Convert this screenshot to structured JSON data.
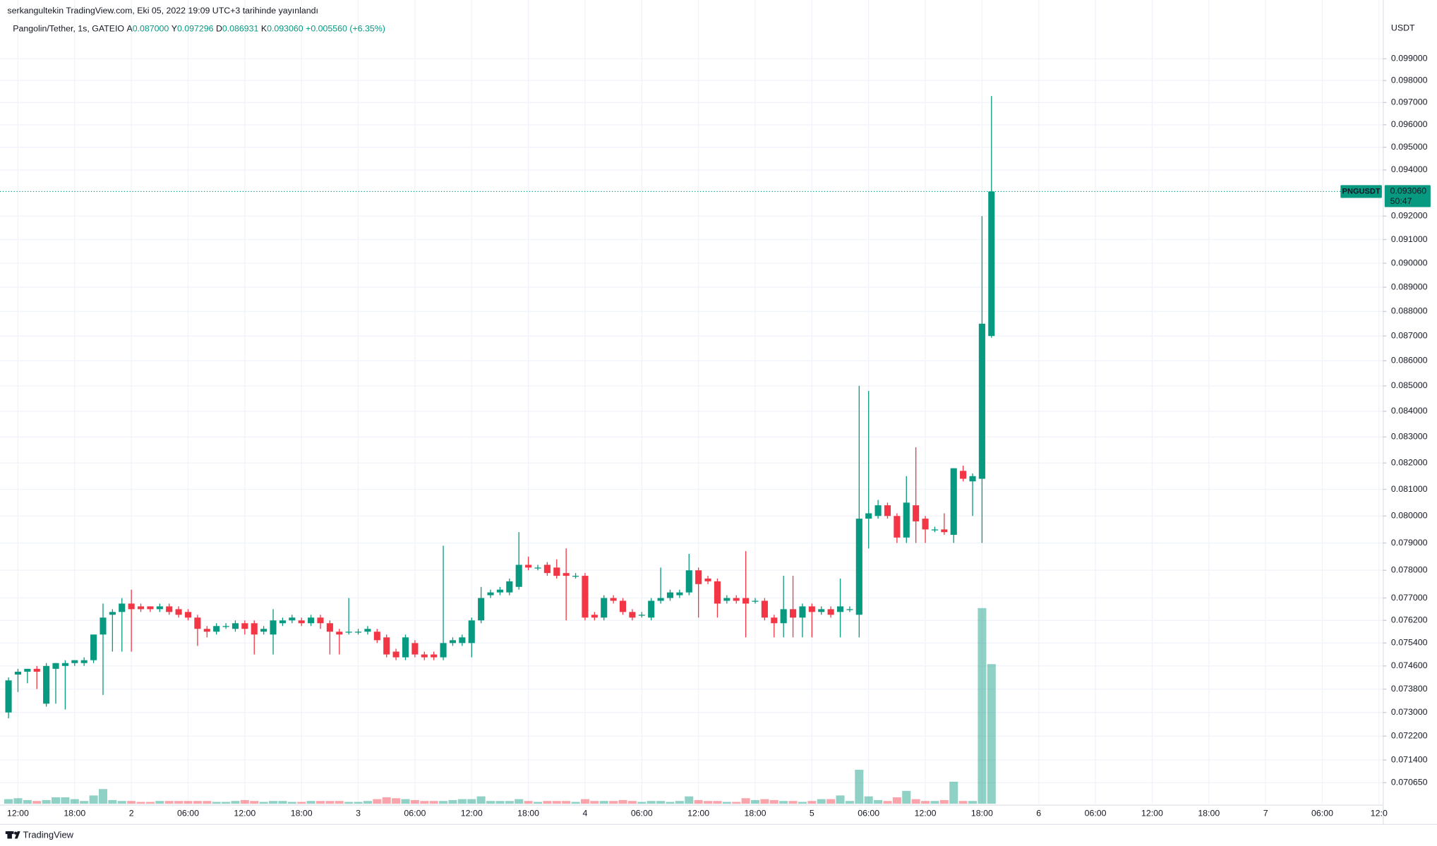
{
  "header": {
    "published": "serkangultekin TradingView.com, Eki 05, 2022 19:09 UTC+3 tarihinde yayınlandı"
  },
  "chart_data": {
    "type": "candlestick",
    "title": "Pangolin/Tether, 1s, GATEIO",
    "ohlc_labels": [
      {
        "key": "A",
        "value": "0.087000"
      },
      {
        "key": "Y",
        "value": "0.097296"
      },
      {
        "key": "D",
        "value": "0.086931"
      },
      {
        "key": "K",
        "value": "0.093060"
      }
    ],
    "change": "+0.005560 (+6.35%)",
    "y_unit": "USDT",
    "log_scale": true,
    "grid": true,
    "xlim": [
      -0.9,
      145.4
    ],
    "xticks": [
      {
        "value": 1,
        "label": "12:00"
      },
      {
        "value": 7,
        "label": "18:00"
      },
      {
        "value": 13,
        "label": "2"
      },
      {
        "value": 19,
        "label": "06:00"
      },
      {
        "value": 25,
        "label": "12:00"
      },
      {
        "value": 31,
        "label": "18:00"
      },
      {
        "value": 37,
        "label": "3"
      },
      {
        "value": 43,
        "label": "06:00"
      },
      {
        "value": 49,
        "label": "12:00"
      },
      {
        "value": 55,
        "label": "18:00"
      },
      {
        "value": 61,
        "label": "4"
      },
      {
        "value": 67,
        "label": "06:00"
      },
      {
        "value": 73,
        "label": "12:00"
      },
      {
        "value": 79,
        "label": "18:00"
      },
      {
        "value": 85,
        "label": "5"
      },
      {
        "value": 91,
        "label": "06:00"
      },
      {
        "value": 97,
        "label": "12:00"
      },
      {
        "value": 103,
        "label": "18:00"
      },
      {
        "value": 109,
        "label": "6"
      },
      {
        "value": 115,
        "label": "06:00"
      },
      {
        "value": 121,
        "label": "12:00"
      },
      {
        "value": 127,
        "label": "18:00"
      },
      {
        "value": 133,
        "label": "7"
      },
      {
        "value": 139,
        "label": "06:00"
      },
      {
        "value": 145,
        "label": "12:0"
      }
    ],
    "ylim": [
      0.06996,
      0.10002
    ],
    "yticks": [
      {
        "value": 0.07065,
        "label": "0.070650"
      },
      {
        "value": 0.0714,
        "label": "0.071400"
      },
      {
        "value": 0.0722,
        "label": "0.072200"
      },
      {
        "value": 0.073,
        "label": "0.073000"
      },
      {
        "value": 0.0738,
        "label": "0.073800"
      },
      {
        "value": 0.0746,
        "label": "0.074600"
      },
      {
        "value": 0.0754,
        "label": "0.075400"
      },
      {
        "value": 0.0762,
        "label": "0.076200"
      },
      {
        "value": 0.077,
        "label": "0.077000"
      },
      {
        "value": 0.078,
        "label": "0.078000"
      },
      {
        "value": 0.079,
        "label": "0.079000"
      },
      {
        "value": 0.08,
        "label": "0.080000"
      },
      {
        "value": 0.081,
        "label": "0.081000"
      },
      {
        "value": 0.082,
        "label": "0.082000"
      },
      {
        "value": 0.083,
        "label": "0.083000"
      },
      {
        "value": 0.084,
        "label": "0.084000"
      },
      {
        "value": 0.085,
        "label": "0.085000"
      },
      {
        "value": 0.086,
        "label": "0.086000"
      },
      {
        "value": 0.087,
        "label": "0.087000"
      },
      {
        "value": 0.088,
        "label": "0.088000"
      },
      {
        "value": 0.089,
        "label": "0.089000"
      },
      {
        "value": 0.09,
        "label": "0.090000"
      },
      {
        "value": 0.091,
        "label": "0.091000"
      },
      {
        "value": 0.092,
        "label": "0.092000"
      },
      {
        "value": 0.094,
        "label": "0.094000"
      },
      {
        "value": 0.095,
        "label": "0.095000"
      },
      {
        "value": 0.096,
        "label": "0.096000"
      },
      {
        "value": 0.097,
        "label": "0.097000"
      },
      {
        "value": 0.098,
        "label": "0.098000"
      },
      {
        "value": 0.099,
        "label": "0.099000"
      }
    ],
    "series": [
      {
        "name": "PNGUSDT",
        "up_color": "#089981",
        "down_color": "#f23645",
        "open": [
          0.073,
          0.0743,
          0.0744,
          0.0745,
          0.0733,
          0.0745,
          0.0746,
          0.0747,
          0.0747,
          0.0748,
          0.0757,
          0.0764,
          0.0765,
          0.0768,
          0.0767,
          0.0767,
          0.0766,
          0.0767,
          0.0766,
          0.0765,
          0.0763,
          0.0759,
          0.0758,
          0.076,
          0.0759,
          0.0761,
          0.0761,
          0.0758,
          0.0757,
          0.0761,
          0.0762,
          0.0762,
          0.0761,
          0.0763,
          0.0761,
          0.0758,
          0.0758,
          0.0758,
          0.0758,
          0.0758,
          0.0756,
          0.0751,
          0.0749,
          0.0754,
          0.075,
          0.075,
          0.0749,
          0.0754,
          0.0754,
          0.0754,
          0.0762,
          0.0771,
          0.0772,
          0.0772,
          0.0774,
          0.0782,
          0.0781,
          0.0782,
          0.0781,
          0.0779,
          0.0778,
          0.0778,
          0.0764,
          0.0763,
          0.077,
          0.0769,
          0.0765,
          0.0764,
          0.0763,
          0.0769,
          0.077,
          0.0771,
          0.0772,
          0.078,
          0.0777,
          0.0776,
          0.0769,
          0.077,
          0.077,
          0.0769,
          0.0769,
          0.0763,
          0.0761,
          0.0766,
          0.0763,
          0.0767,
          0.0765,
          0.0766,
          0.0765,
          0.0766,
          0.0764,
          0.0799,
          0.08,
          0.0804,
          0.08,
          0.0792,
          0.0804,
          0.0799,
          0.0795,
          0.0795,
          0.0793,
          0.0817,
          0.0813,
          0.0814,
          0.087
        ],
        "high": [
          0.0742,
          0.0745,
          0.0745,
          0.0746,
          0.0747,
          0.0747,
          0.0748,
          0.0748,
          0.0749,
          0.0757,
          0.0768,
          0.0766,
          0.077,
          0.0773,
          0.0768,
          0.0767,
          0.0768,
          0.0768,
          0.0767,
          0.0766,
          0.0764,
          0.076,
          0.0761,
          0.0761,
          0.0762,
          0.0762,
          0.0762,
          0.076,
          0.0766,
          0.0763,
          0.0764,
          0.0763,
          0.0764,
          0.0764,
          0.0762,
          0.0759,
          0.077,
          0.0759,
          0.076,
          0.0759,
          0.0757,
          0.0752,
          0.0757,
          0.0755,
          0.0751,
          0.0751,
          0.0789,
          0.0756,
          0.0757,
          0.0763,
          0.0774,
          0.0773,
          0.0774,
          0.0777,
          0.0794,
          0.0785,
          0.0782,
          0.0783,
          0.0784,
          0.0788,
          0.0779,
          0.0779,
          0.0765,
          0.0771,
          0.0771,
          0.077,
          0.0766,
          0.0765,
          0.077,
          0.0781,
          0.0773,
          0.0773,
          0.0786,
          0.0781,
          0.0778,
          0.0777,
          0.0771,
          0.0771,
          0.0787,
          0.077,
          0.077,
          0.0764,
          0.0778,
          0.0778,
          0.0768,
          0.0768,
          0.0767,
          0.0767,
          0.0777,
          0.0767,
          0.085,
          0.0848,
          0.0806,
          0.0805,
          0.0801,
          0.0815,
          0.0826,
          0.08,
          0.0796,
          0.0801,
          0.0818,
          0.0819,
          0.0816,
          0.092,
          0.097296
        ],
        "low": [
          0.0728,
          0.0737,
          0.074,
          0.0738,
          0.0732,
          0.0733,
          0.0731,
          0.0746,
          0.0746,
          0.0747,
          0.0736,
          0.0751,
          0.0751,
          0.0751,
          0.0765,
          0.0765,
          0.0765,
          0.0764,
          0.0763,
          0.0762,
          0.0753,
          0.0756,
          0.0757,
          0.0759,
          0.0758,
          0.0757,
          0.075,
          0.0757,
          0.075,
          0.076,
          0.0761,
          0.076,
          0.076,
          0.0759,
          0.075,
          0.075,
          0.0757,
          0.0757,
          0.0757,
          0.0754,
          0.0749,
          0.0748,
          0.0748,
          0.0749,
          0.0748,
          0.0748,
          0.0748,
          0.0753,
          0.0753,
          0.0749,
          0.0761,
          0.077,
          0.0771,
          0.0771,
          0.0773,
          0.078,
          0.078,
          0.0778,
          0.0777,
          0.0762,
          0.0777,
          0.0762,
          0.0762,
          0.0762,
          0.0768,
          0.0764,
          0.0762,
          0.0763,
          0.0762,
          0.0768,
          0.0769,
          0.077,
          0.0771,
          0.0763,
          0.0775,
          0.0763,
          0.0768,
          0.0768,
          0.0756,
          0.0768,
          0.0762,
          0.0756,
          0.0756,
          0.0756,
          0.0756,
          0.0756,
          0.0764,
          0.0763,
          0.0756,
          0.0765,
          0.0756,
          0.0788,
          0.0799,
          0.0799,
          0.079,
          0.079,
          0.079,
          0.079,
          0.0794,
          0.0793,
          0.079,
          0.0813,
          0.08,
          0.079,
          0.086931
        ],
        "close": [
          0.0741,
          0.0744,
          0.0745,
          0.0744,
          0.0746,
          0.0747,
          0.0747,
          0.0748,
          0.0748,
          0.0757,
          0.0763,
          0.0765,
          0.0768,
          0.0766,
          0.0766,
          0.0766,
          0.0767,
          0.0765,
          0.0764,
          0.0763,
          0.0759,
          0.0758,
          0.076,
          0.076,
          0.0761,
          0.0759,
          0.0757,
          0.0759,
          0.0762,
          0.0762,
          0.0763,
          0.0761,
          0.0763,
          0.0761,
          0.0758,
          0.0757,
          0.0758,
          0.0758,
          0.0759,
          0.0755,
          0.075,
          0.0749,
          0.0756,
          0.075,
          0.0749,
          0.0749,
          0.0754,
          0.0755,
          0.0756,
          0.0762,
          0.077,
          0.0772,
          0.0773,
          0.0776,
          0.0782,
          0.0781,
          0.0781,
          0.0779,
          0.0778,
          0.0778,
          0.0778,
          0.0763,
          0.0763,
          0.077,
          0.0769,
          0.0765,
          0.0763,
          0.0764,
          0.0769,
          0.077,
          0.0772,
          0.0772,
          0.078,
          0.0775,
          0.0776,
          0.0768,
          0.077,
          0.0769,
          0.0768,
          0.0769,
          0.0763,
          0.0761,
          0.0766,
          0.0763,
          0.0767,
          0.0765,
          0.0766,
          0.0764,
          0.0767,
          0.0766,
          0.0799,
          0.0801,
          0.0804,
          0.08,
          0.0792,
          0.0805,
          0.0798,
          0.0795,
          0.0795,
          0.0794,
          0.0818,
          0.0814,
          0.0815,
          0.0875,
          0.09306
        ]
      }
    ],
    "volume": {
      "values": [
        5,
        6,
        4,
        3,
        4,
        7,
        7,
        5,
        3,
        9,
        16,
        4,
        3,
        3,
        2,
        2,
        3,
        3,
        3,
        3,
        3,
        3,
        2,
        2,
        3,
        4,
        3,
        2,
        3,
        3,
        2,
        2,
        3,
        3,
        3,
        3,
        2,
        2,
        3,
        5,
        7,
        6,
        5,
        4,
        3,
        3,
        3,
        4,
        5,
        5,
        8,
        3,
        3,
        3,
        5,
        3,
        2,
        3,
        3,
        3,
        2,
        5,
        3,
        3,
        3,
        4,
        3,
        2,
        3,
        3,
        2,
        3,
        8,
        4,
        3,
        3,
        2,
        2,
        6,
        4,
        5,
        4,
        3,
        3,
        2,
        3,
        5,
        5,
        9,
        3,
        37,
        8,
        4,
        3,
        7,
        14,
        5,
        3,
        3,
        4,
        24,
        3,
        3,
        213,
        152
      ]
    },
    "last_price": {
      "label": "0.093060",
      "countdown": "50:47"
    }
  },
  "footer": {
    "brand": "TradingView"
  }
}
